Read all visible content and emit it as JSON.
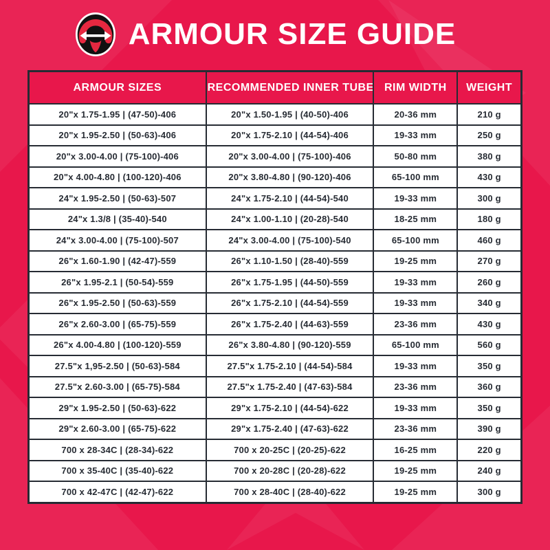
{
  "header": {
    "title": "ARMOUR SIZE GUIDE",
    "logo_icon": "tire-tube-width-arrow-icon"
  },
  "colors": {
    "background_pink": "#E8174B",
    "pattern_overlay": "rgba(255,255,255,0.06)",
    "table_header_bg": "#E8174B",
    "table_border": "#262B33",
    "cell_text": "#262B33",
    "header_text": "#FFFFFF",
    "logo_red": "#E62840",
    "logo_black": "#111111"
  },
  "chart_data": {
    "type": "table",
    "title": "ARMOUR SIZE GUIDE",
    "headers": [
      "ARMOUR SIZES",
      "RECOMMENDED INNER TUBE",
      "RIM WIDTH",
      "WEIGHT"
    ],
    "rows": [
      [
        "20\"x 1.75-1.95 | (47-50)-406",
        "20\"x 1.50-1.95 | (40-50)-406",
        "20-36 mm",
        "210 g"
      ],
      [
        "20\"x 1.95-2.50 | (50-63)-406",
        "20\"x 1.75-2.10 | (44-54)-406",
        "19-33 mm",
        "250 g"
      ],
      [
        "20\"x 3.00-4.00 | (75-100)-406",
        "20\"x 3.00-4.00 | (75-100)-406",
        "50-80 mm",
        "380 g"
      ],
      [
        "20\"x 4.00-4.80 | (100-120)-406",
        "20\"x 3.80-4.80 | (90-120)-406",
        "65-100 mm",
        "430 g"
      ],
      [
        "24\"x 1.95-2.50 | (50-63)-507",
        "24\"x 1.75-2.10 | (44-54)-540",
        "19-33 mm",
        "300 g"
      ],
      [
        "24\"x 1.3/8 | (35-40)-540",
        "24\"x 1.00-1.10 | (20-28)-540",
        "18-25 mm",
        "180 g"
      ],
      [
        "24\"x 3.00-4.00 | (75-100)-507",
        "24\"x 3.00-4.00 | (75-100)-540",
        "65-100 mm",
        "460 g"
      ],
      [
        "26\"x 1.60-1.90 | (42-47)-559",
        "26\"x 1.10-1.50 | (28-40)-559",
        "19-25 mm",
        "270 g"
      ],
      [
        "26\"x 1.95-2.1 | (50-54)-559",
        "26\"x 1.75-1.95 | (44-50)-559",
        "19-33 mm",
        "260 g"
      ],
      [
        "26\"x 1.95-2.50 | (50-63)-559",
        "26\"x 1.75-2.10 | (44-54)-559",
        "19-33 mm",
        "340 g"
      ],
      [
        "26\"x 2.60-3.00 | (65-75)-559",
        "26\"x 1.75-2.40 | (44-63)-559",
        "23-36 mm",
        "430 g"
      ],
      [
        "26\"x 4.00-4.80 | (100-120)-559",
        "26\"x 3.80-4.80 | (90-120)-559",
        "65-100 mm",
        "560 g"
      ],
      [
        "27.5\"x 1,95-2.50 | (50-63)-584",
        "27.5\"x 1.75-2.10 | (44-54)-584",
        "19-33 mm",
        "350 g"
      ],
      [
        "27.5\"x 2.60-3.00 | (65-75)-584",
        "27.5\"x 1.75-2.40 | (47-63)-584",
        "23-36 mm",
        "360 g"
      ],
      [
        "29\"x 1.95-2.50 | (50-63)-622",
        "29\"x 1.75-2.10 | (44-54)-622",
        "19-33 mm",
        "350 g"
      ],
      [
        "29\"x 2.60-3.00 | (65-75)-622",
        "29\"x 1.75-2.40 | (47-63)-622",
        "23-36 mm",
        "390 g"
      ],
      [
        "700 x 28-34C | (28-34)-622",
        "700 x 20-25C | (20-25)-622",
        "16-25 mm",
        "220 g"
      ],
      [
        "700 x 35-40C | (35-40)-622",
        "700 x 20-28C | (20-28)-622",
        "19-25 mm",
        "240 g"
      ],
      [
        "700 x 42-47C | (42-47)-622",
        "700 x 28-40C | (28-40)-622",
        "19-25 mm",
        "300 g"
      ]
    ]
  }
}
